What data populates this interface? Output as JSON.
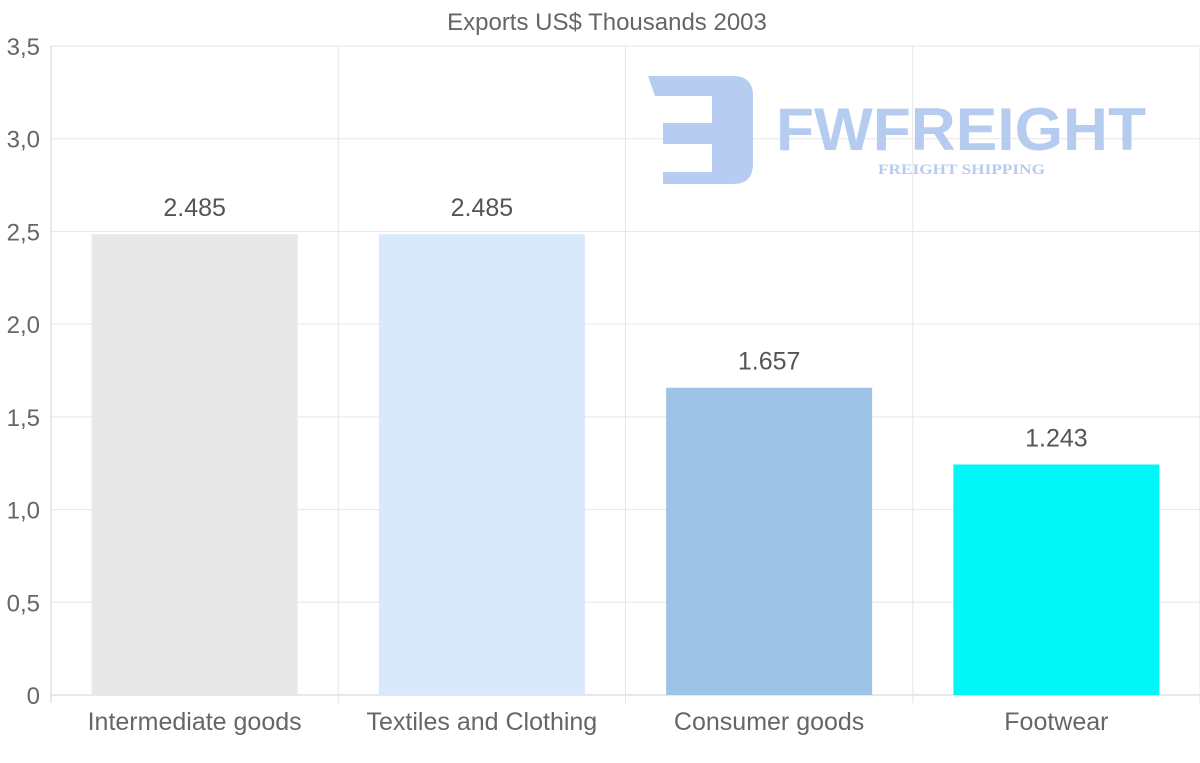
{
  "chart_data": {
    "type": "bar",
    "title": "Exports US$ Thousands 2003",
    "categories": [
      "Intermediate goods",
      "Textiles and Clothing",
      "Consumer goods",
      "Footwear"
    ],
    "values": [
      2.485,
      2.485,
      1.657,
      1.243
    ],
    "value_labels": [
      "2.485",
      "2.485",
      "1.657",
      "1.243"
    ],
    "colors": [
      "#e8e8e8",
      "#d9e8fa",
      "#9dc3e6",
      "#00f7f7"
    ],
    "ylim": [
      0,
      3.5
    ],
    "yticks": [
      0,
      0.5,
      1.0,
      1.5,
      2.0,
      2.5,
      3.0,
      3.5
    ],
    "ytick_labels": [
      "0",
      "0,5",
      "1,0",
      "1,5",
      "2,0",
      "2,5",
      "3,0",
      "3,5"
    ],
    "xlabel": "",
    "ylabel": "",
    "grid": true
  },
  "watermark": {
    "brand": "FWFREIGHT",
    "tagline": "FREIGHT SHIPPING",
    "color": "#b3c9f0"
  }
}
